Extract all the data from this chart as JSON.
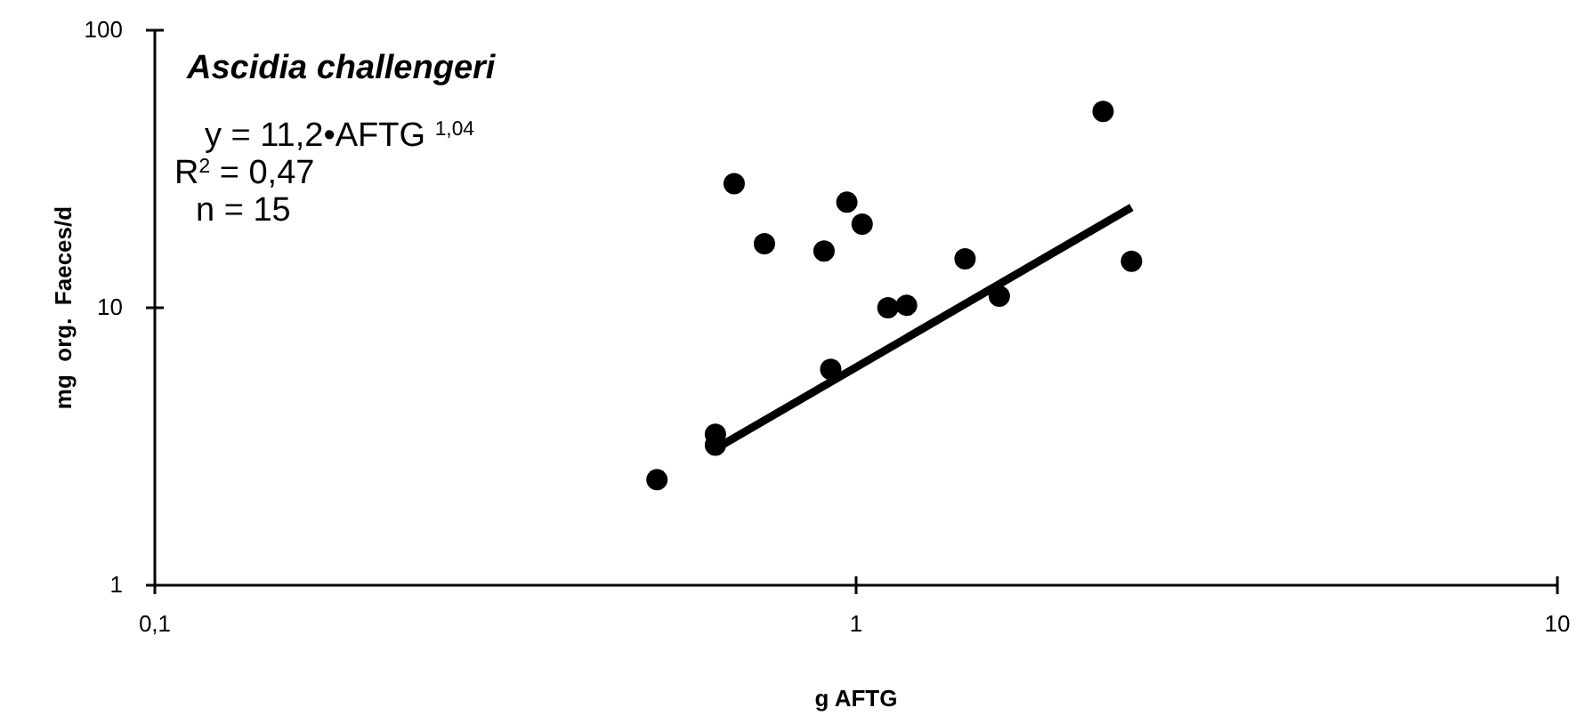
{
  "chart_data": {
    "type": "scatter",
    "title": "Ascidia challengeri",
    "xlabel": "g AFTG",
    "ylabel": "mg  org.  Faeces/d",
    "log": "xy",
    "xlim": [
      0.1,
      10
    ],
    "ylim": [
      1,
      100
    ],
    "xticks": [
      {
        "value": 0.1,
        "label": "0,1"
      },
      1,
      10
    ],
    "yticks": [
      1,
      10,
      100
    ],
    "grid": false,
    "marker": "circle",
    "annotations": [
      "y = 11,2•AFTG $^{1,04}$",
      "R$^{2}$ = 0,47",
      "n = 15"
    ],
    "series": [
      {
        "color": "#000000",
        "x": [
          0.63,
          0.63,
          0.52,
          0.67,
          0.74,
          0.9,
          0.97,
          1.02,
          0.92,
          1.11,
          1.18,
          1.43,
          1.6,
          2.25,
          2.47
        ],
        "values": [
          3.5,
          3.2,
          2.4,
          28,
          17,
          16,
          24,
          20,
          6.0,
          10,
          10.2,
          15,
          11,
          51,
          14.7
        ]
      },
      {
        "type": "line",
        "color": "#000000",
        "x": [
          0.63,
          2.47
        ],
        "values": [
          3.1,
          23
        ],
        "line_style": "solid",
        "marker": "none"
      }
    ]
  }
}
